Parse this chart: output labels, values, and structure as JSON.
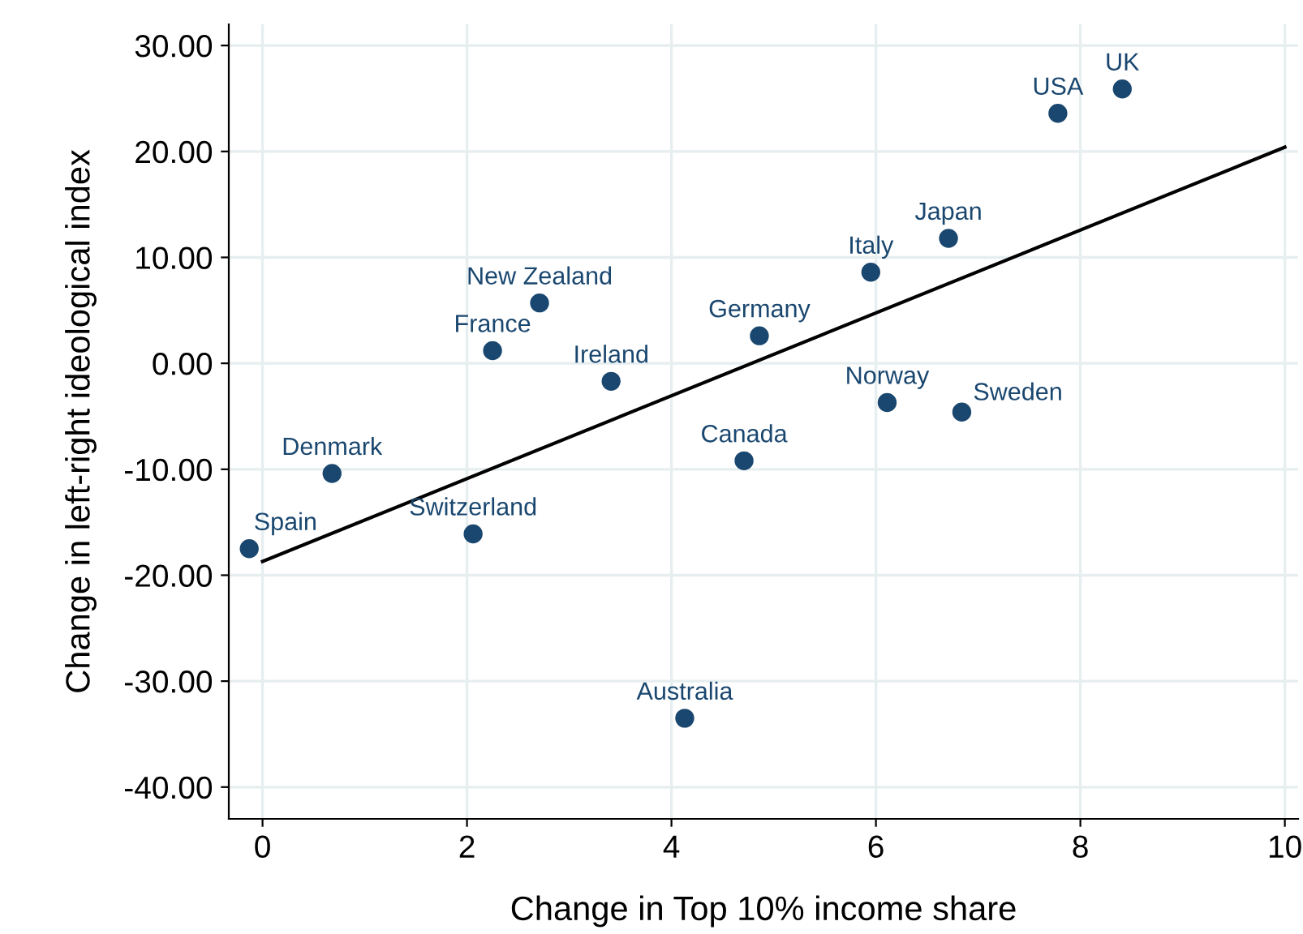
{
  "chart_data": {
    "type": "scatter",
    "xlabel": "Change in Top 10% income share",
    "ylabel": "Change in left-right ideological index",
    "xlim": [
      -0.33,
      10.13
    ],
    "ylim": [
      -43,
      32
    ],
    "xticks": [
      0,
      2,
      4,
      6,
      8,
      10
    ],
    "yticks": [
      {
        "value": -40,
        "label": "-40.00"
      },
      {
        "value": -30,
        "label": "-30.00"
      },
      {
        "value": -20,
        "label": "-20.00"
      },
      {
        "value": -10,
        "label": "-10.00"
      },
      {
        "value": 0,
        "label": "0.00"
      },
      {
        "value": 10,
        "label": "10.00"
      },
      {
        "value": 20,
        "label": "20.00"
      },
      {
        "value": 30,
        "label": "30.00"
      }
    ],
    "grid": true,
    "series": [
      {
        "marker": "circle",
        "color": "#1a476f",
        "x": [
          -0.13,
          0.68,
          2.06,
          2.25,
          2.71,
          3.41,
          4.13,
          4.71,
          4.86,
          5.95,
          6.11,
          6.71,
          6.84,
          7.78,
          8.41
        ],
        "values": [
          -17.5,
          -10.4,
          -16.1,
          1.2,
          5.7,
          -1.7,
          -33.5,
          -9.2,
          2.6,
          8.6,
          -3.7,
          11.8,
          -4.6,
          23.6,
          25.9
        ]
      },
      {
        "type": "line",
        "color": "#000000",
        "x": [
          0,
          10
        ],
        "values": [
          -18.7,
          20.4
        ]
      }
    ],
    "annotations": [
      {
        "text": "Spain",
        "x": -0.13,
        "y": -17.5
      },
      {
        "text": "Denmark",
        "x": 0.68,
        "y": -10.4
      },
      {
        "text": "Switzerland",
        "x": 2.06,
        "y": -16.1
      },
      {
        "text": "France",
        "x": 2.25,
        "y": 1.2
      },
      {
        "text": "New Zealand",
        "x": 2.71,
        "y": 5.7
      },
      {
        "text": "Ireland",
        "x": 3.41,
        "y": -1.7
      },
      {
        "text": "Australia",
        "x": 4.13,
        "y": -33.5
      },
      {
        "text": "Canada",
        "x": 4.71,
        "y": -9.2
      },
      {
        "text": "Germany",
        "x": 4.86,
        "y": 2.6
      },
      {
        "text": "Italy",
        "x": 5.95,
        "y": 8.6
      },
      {
        "text": "Norway",
        "x": 6.11,
        "y": -3.7
      },
      {
        "text": "Japan",
        "x": 6.71,
        "y": 11.8
      },
      {
        "text": "Sweden",
        "x": 6.84,
        "y": -4.6
      },
      {
        "text": "USA",
        "x": 7.78,
        "y": 23.6
      },
      {
        "text": "UK",
        "x": 8.41,
        "y": 25.9
      }
    ]
  }
}
